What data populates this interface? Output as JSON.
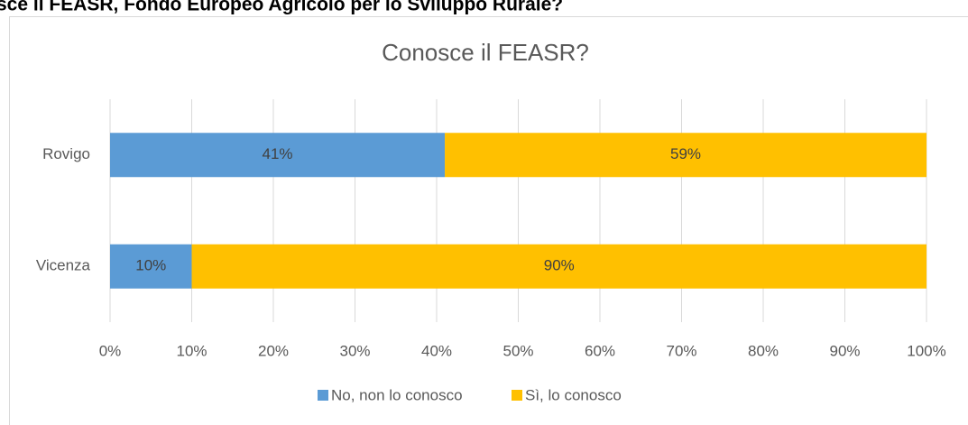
{
  "header": {
    "title": "sce il FEASR, Fondo Europeo Agricolo per lo Sviluppo Rurale?"
  },
  "chart_data": {
    "type": "stacked-barh",
    "title": "Conosce il FEASR?",
    "categories": [
      "Rovigo",
      "Vicenza"
    ],
    "series": [
      {
        "name": "No, non lo conosco",
        "color": "#5b9bd5",
        "values": [
          41,
          10
        ],
        "value_labels": [
          "41%",
          "10%"
        ]
      },
      {
        "name": "Sì, lo conosco",
        "color": "#ffc000",
        "values": [
          59,
          90
        ],
        "value_labels": [
          "59%",
          "90%"
        ]
      }
    ],
    "xlim": [
      0,
      100
    ],
    "xticks": [
      {
        "value": 0,
        "label": "0%"
      },
      {
        "value": 10,
        "label": "10%"
      },
      {
        "value": 20,
        "label": "20%"
      },
      {
        "value": 30,
        "label": "30%"
      },
      {
        "value": 40,
        "label": "40%"
      },
      {
        "value": 50,
        "label": "50%"
      },
      {
        "value": 60,
        "label": "60%"
      },
      {
        "value": 70,
        "label": "70%"
      },
      {
        "value": 80,
        "label": "80%"
      },
      {
        "value": 90,
        "label": "90%"
      },
      {
        "value": 100,
        "label": "100%"
      }
    ],
    "grid": true,
    "legend": "bottom"
  }
}
